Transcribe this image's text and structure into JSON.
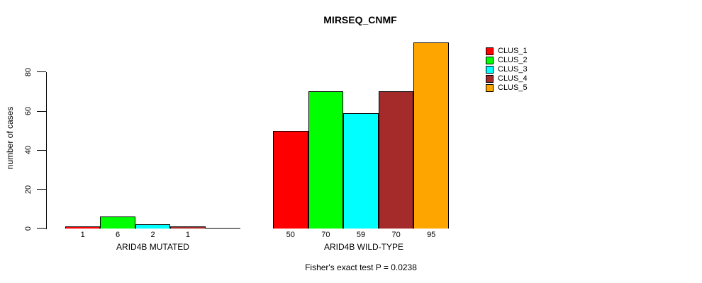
{
  "title": "MIRSEQ_CNMF",
  "y_axis": {
    "label": "number of cases",
    "ticks": [
      "0",
      "20",
      "40",
      "60",
      "80"
    ]
  },
  "legend": {
    "items": [
      {
        "label": "CLUS_1",
        "color": "#FF0000"
      },
      {
        "label": "CLUS_2",
        "color": "#00FF00"
      },
      {
        "label": "CLUS_3",
        "color": "#00FFFF"
      },
      {
        "label": "CLUS_4",
        "color": "#A52A2A"
      },
      {
        "label": "CLUS_5",
        "color": "#FFA500"
      }
    ]
  },
  "footnote": "Fisher's exact test P = 0.0238",
  "chart_data": {
    "type": "bar",
    "title": "MIRSEQ_CNMF",
    "ylabel": "number of cases",
    "ylim": [
      0,
      95
    ],
    "yticks": [
      0,
      20,
      40,
      60,
      80
    ],
    "grid": false,
    "legend_position": "top-right",
    "series": [
      "CLUS_1",
      "CLUS_2",
      "CLUS_3",
      "CLUS_4",
      "CLUS_5"
    ],
    "series_colors": [
      "#FF0000",
      "#00FF00",
      "#00FFFF",
      "#A52A2A",
      "#FFA500"
    ],
    "groups": [
      {
        "label": "ARID4B MUTATED",
        "values": [
          1,
          6,
          2,
          1,
          0
        ],
        "value_labels": [
          "1",
          "6",
          "2",
          "1",
          ""
        ]
      },
      {
        "label": "ARID4B WILD-TYPE",
        "values": [
          50,
          70,
          59,
          70,
          95
        ],
        "value_labels": [
          "50",
          "70",
          "59",
          "70",
          "95"
        ]
      }
    ],
    "annotation": "Fisher's exact test P = 0.0238"
  }
}
